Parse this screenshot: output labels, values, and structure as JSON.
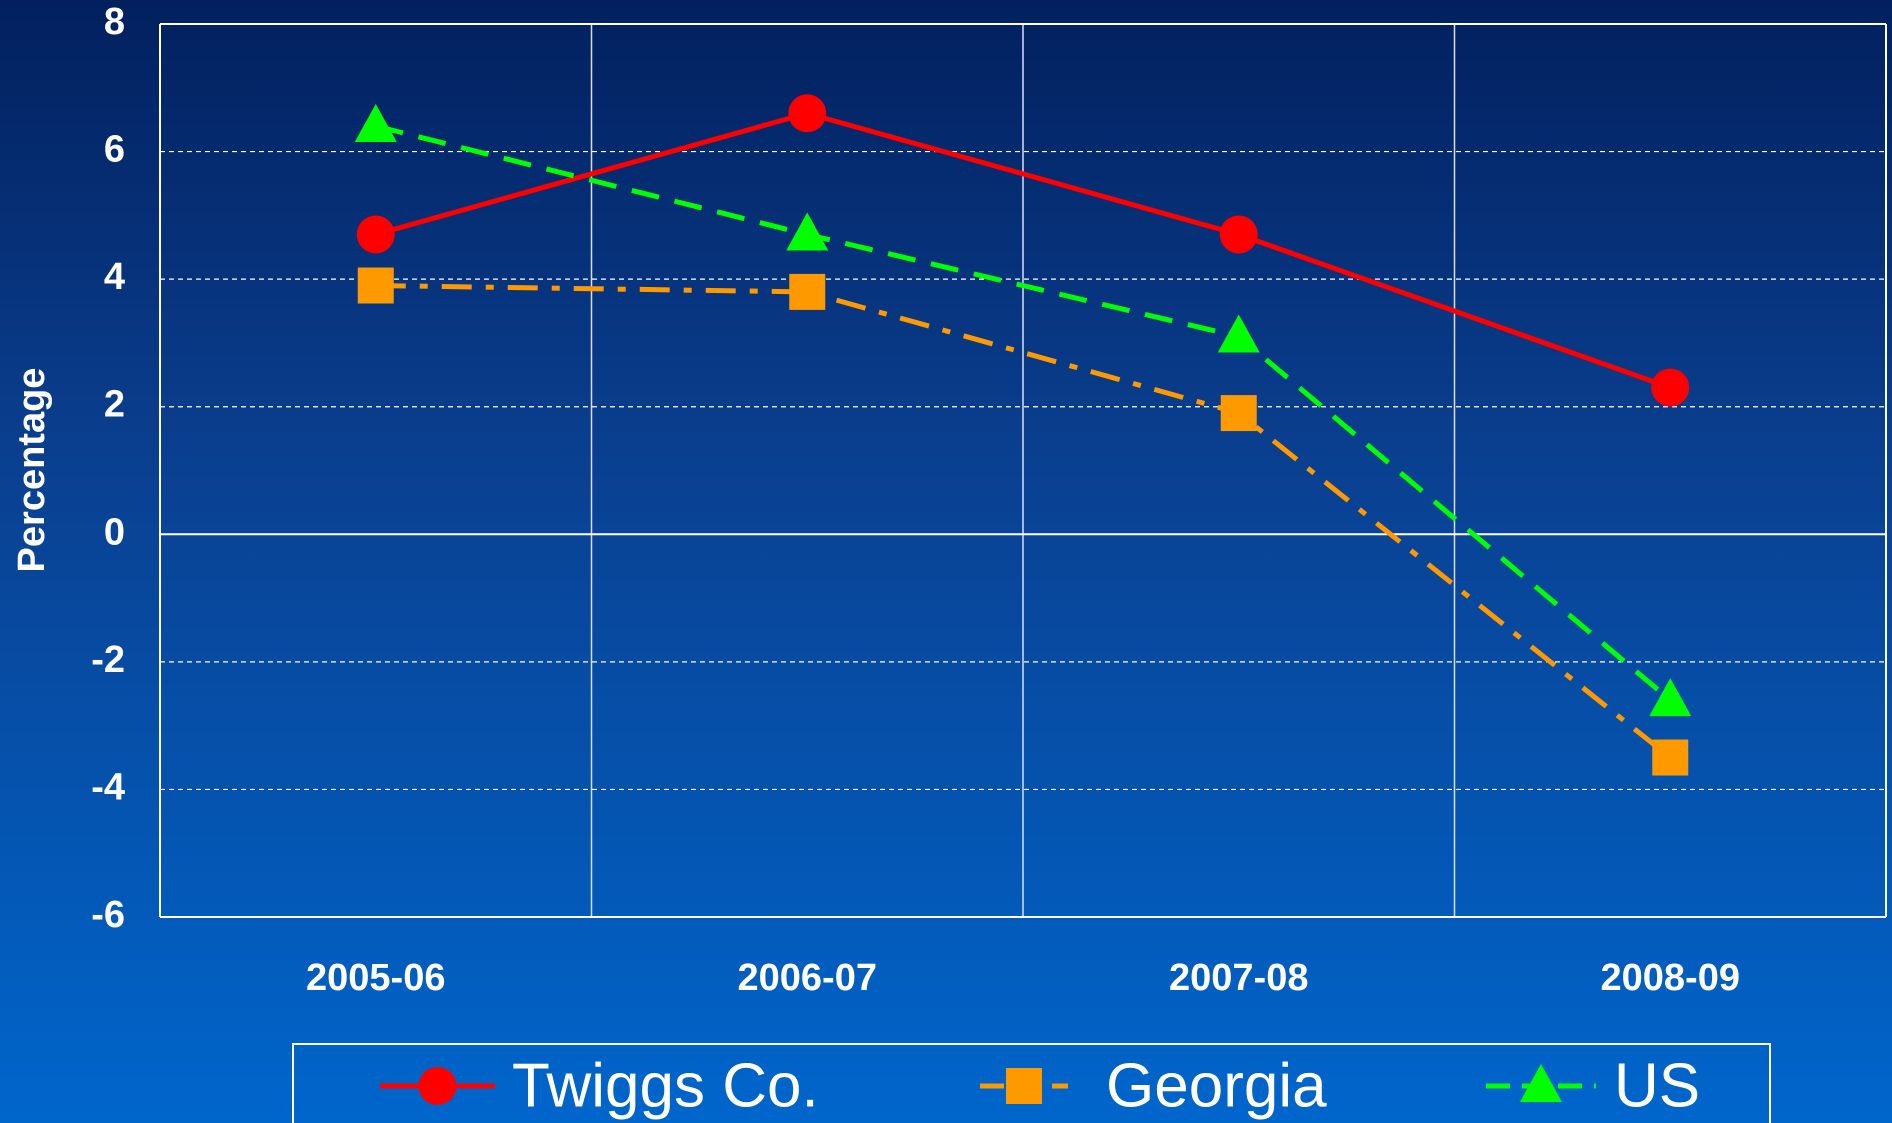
{
  "chart_data": {
    "type": "line",
    "y_label": "Percentage",
    "categories": [
      "2005-06",
      "2006-07",
      "2007-08",
      "2008-09"
    ],
    "series": [
      {
        "name": "Twiggs Co.",
        "color": "#ff0000",
        "line_style": "solid",
        "marker": "circle",
        "values": [
          4.7,
          6.6,
          4.7,
          2.3
        ]
      },
      {
        "name": "Georgia",
        "color": "#ff9900",
        "line_style": "dashdot",
        "marker": "square",
        "values": [
          3.9,
          3.8,
          1.9,
          -3.5
        ]
      },
      {
        "name": "US",
        "color": "#00ff00",
        "line_style": "dashed",
        "marker": "triangle",
        "values": [
          6.4,
          4.7,
          3.1,
          -2.6
        ]
      }
    ],
    "ylim": [
      -6,
      8
    ],
    "yticks": [
      -6,
      -4,
      -2,
      0,
      2,
      4,
      6,
      8
    ],
    "grid": true,
    "legend": "bottom"
  }
}
